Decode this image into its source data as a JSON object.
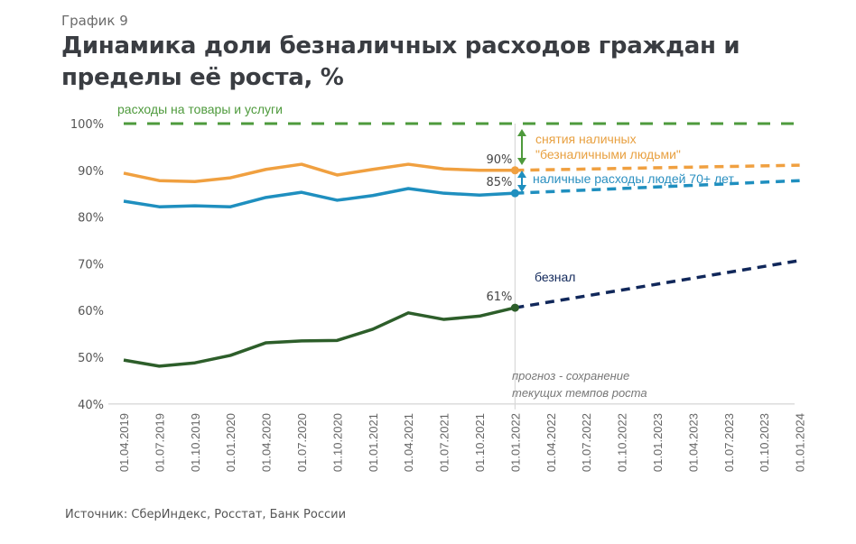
{
  "header": {
    "subtitle": "График 9",
    "title": "Динамика доли безналичных расходов граждан и пределы её роста, %"
  },
  "footer": {
    "source": "Источник: СберИндекс, Росстат, Банк России"
  },
  "chart_data": {
    "type": "line",
    "title": "Динамика доли безналичных расходов граждан и пределы её роста, %",
    "xlabel": "",
    "ylabel": "",
    "ylim": [
      40,
      100
    ],
    "yticks": [
      "40%",
      "50%",
      "60%",
      "70%",
      "80%",
      "90%",
      "100%"
    ],
    "ytick_values": [
      40,
      50,
      60,
      70,
      80,
      90,
      100
    ],
    "grid": false,
    "categories": [
      "01.04.2019",
      "01.07.2019",
      "01.10.2019",
      "01.01.2020",
      "01.04.2020",
      "01.07.2020",
      "01.10.2020",
      "01.01.2021",
      "01.04.2021",
      "01.07.2021",
      "01.10.2021",
      "01.01.2022",
      "01.04.2022",
      "01.07.2022",
      "01.10.2022",
      "01.01.2023",
      "01.04.2023",
      "01.07.2023",
      "01.10.2023",
      "01.01.2024"
    ],
    "forecast_start": "01.01.2022",
    "series": [
      {
        "name": "расходы на товары и услуги",
        "color": "#4e9a3c",
        "style": "dashed",
        "values": [
          100,
          100,
          100,
          100,
          100,
          100,
          100,
          100,
          100,
          100,
          100,
          100,
          100,
          100,
          100,
          100,
          100,
          100,
          100,
          100
        ]
      },
      {
        "name": "снятия наличных \"безналичными людьми\"",
        "color": "#f0a040",
        "actual": [
          89.4,
          87.8,
          87.6,
          88.4,
          90.2,
          91.3,
          89.0,
          90.2,
          91.3,
          90.3,
          90.0,
          90.0
        ],
        "forecast": [
          90.0,
          91.1
        ],
        "end_label": "90%"
      },
      {
        "name": "наличные расходы людей 70+ лет",
        "color": "#1f8fbf",
        "actual": [
          83.4,
          82.2,
          82.4,
          82.2,
          84.2,
          85.3,
          83.6,
          84.6,
          86.1,
          85.1,
          84.7,
          85.1
        ],
        "forecast": [
          85.1,
          87.8
        ],
        "end_label": "85%"
      },
      {
        "name": "безнал",
        "color": "#2d5e2a",
        "forecast_color": "#10275a",
        "actual": [
          49.4,
          48.1,
          48.8,
          50.4,
          53.1,
          53.5,
          53.6,
          56.0,
          59.5,
          58.1,
          58.8,
          60.6
        ],
        "forecast": [
          60.6,
          70.7
        ],
        "end_label": "61%"
      }
    ],
    "annotations": {
      "total_label": "расходы на товары и услуги",
      "cash_withdrawal_line1": "снятия наличных",
      "cash_withdrawal_line2": "\"безналичными людьми\"",
      "elderly_label": "наличные расходы людей 70+ лет",
      "cashless_label": "безнал",
      "forecast_note_line1": "прогноз - сохранение",
      "forecast_note_line2": "текущих темпов роста"
    },
    "colors": {
      "total": "#4e9a3c",
      "orange": "#f0a040",
      "blue": "#1f8fbf",
      "green": "#2d5e2a",
      "navy": "#10275a",
      "arrow_green": "#4e9a3c",
      "arrow_blue": "#1f8fbf",
      "text_orange": "#e8a040",
      "text_blue": "#2a8fc0"
    }
  }
}
